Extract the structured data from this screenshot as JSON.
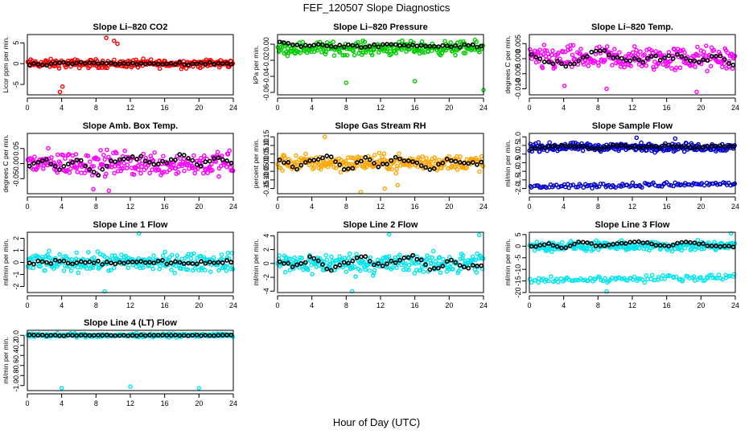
{
  "title": "FEF_120507  Slope Diagnostics",
  "xlabel": "Hour of Day (UTC)",
  "chart_data": [
    {
      "type": "scatter",
      "title": "Slope Li–820 CO2",
      "ylabel": "Licor ppm per min.",
      "color": "#ff0000",
      "xlim": [
        0,
        24
      ],
      "xticks": [
        "0",
        "4",
        "8",
        "12",
        "16",
        "20",
        "24"
      ],
      "ylim": [
        -7.5,
        7
      ],
      "yticks": [
        "-5",
        "0",
        "5"
      ],
      "series": [
        {
          "band_center": 0,
          "band_halfwidth": 1.5,
          "trend": [
            0,
            0,
            0,
            0,
            0,
            0,
            0
          ]
        },
        {
          "x": [
            3.8,
            4.1,
            8.8,
            9.2,
            10.1,
            10.5
          ],
          "y": [
            -6.8,
            -5.5,
            7.6,
            6.2,
            5.5,
            4.8
          ]
        },
        {
          "x": [
            0,
            2,
            4,
            6,
            8,
            10,
            12,
            14,
            16,
            18,
            20,
            22,
            24
          ],
          "y": [
            0,
            -0.2,
            0.3,
            0,
            0.2,
            0,
            0,
            -0.1,
            0,
            0,
            0,
            0.1,
            0
          ]
        }
      ]
    },
    {
      "type": "scatter",
      "title": "Slope Li–820 Pressure",
      "ylabel": "kPa per min.",
      "color": "#00cc00",
      "xlim": [
        0,
        24
      ],
      "xticks": [
        "0",
        "4",
        "8",
        "12",
        "16",
        "20",
        "24"
      ],
      "ylim": [
        -0.063,
        0.012
      ],
      "yticks": [
        "-0.06",
        "-0.04",
        "-0.02",
        "0.00"
      ],
      "series": [
        {
          "band_center": -0.005,
          "band_halfwidth": 0.012,
          "trend": [
            -0.002,
            -0.002,
            -0.002,
            -0.002,
            -0.002,
            -0.002,
            -0.002
          ]
        },
        {
          "x": [
            8,
            16,
            24
          ],
          "y": [
            -0.048,
            -0.046,
            -0.057
          ]
        },
        {
          "x": [
            0,
            2,
            4,
            6,
            8,
            10,
            12,
            14,
            16,
            18,
            20,
            22,
            24
          ],
          "y": [
            0.002,
            0,
            -0.002,
            -0.001,
            -0.002,
            -0.003,
            -0.002,
            -0.001,
            -0.002,
            -0.002,
            -0.003,
            -0.002,
            -0.002
          ]
        }
      ]
    },
    {
      "type": "scatter",
      "title": "Slope Li–820 Temp.",
      "ylabel": "degrees C per min.",
      "color": "#ff00ff",
      "xlim": [
        0,
        24
      ],
      "xticks": [
        "0",
        "4",
        "8",
        "12",
        "16",
        "20",
        "24"
      ],
      "ylim": [
        -0.012,
        0.008
      ],
      "yticks": [
        "-0.010",
        "-0.005",
        "0.000",
        "0.005"
      ],
      "series": [
        {
          "band_center": 0,
          "band_halfwidth": 0.006,
          "trend": [
            0,
            0,
            0,
            0,
            0,
            0,
            0
          ]
        },
        {
          "x": [
            4.1,
            9,
            19.5
          ],
          "y": [
            -0.009,
            -0.01,
            -0.011
          ]
        },
        {
          "x": [
            0,
            2,
            4,
            6,
            8,
            10,
            12,
            14,
            16,
            18,
            20,
            22,
            24
          ],
          "y": [
            0.001,
            -0.001,
            -0.002,
            0,
            0.002,
            0.001,
            -0.001,
            0,
            0.001,
            0,
            -0.001,
            0.001,
            -0.002
          ]
        }
      ]
    },
    {
      "type": "scatter",
      "title": "Slope Amb. Box Temp.",
      "ylabel": "degrees C per min.",
      "color": "#ff00ff",
      "xlim": [
        0,
        24
      ],
      "xticks": [
        "0",
        "4",
        "8",
        "12",
        "16",
        "20",
        "24"
      ],
      "ylim": [
        -0.1,
        0.1
      ],
      "yticks": [
        "-0.05",
        "0.00",
        "0.05"
      ],
      "series": [
        {
          "band_center": 0,
          "band_halfwidth": 0.06,
          "trend": [
            0,
            0,
            0,
            0,
            0,
            0,
            0
          ]
        },
        {
          "x": [
            7.7,
            9.5
          ],
          "y": [
            -0.085,
            -0.09
          ]
        },
        {
          "x": [
            0,
            2,
            4,
            6,
            8,
            10,
            12,
            14,
            16,
            18,
            20,
            22,
            24
          ],
          "y": [
            -0.01,
            0.01,
            -0.02,
            0.02,
            -0.04,
            0.01,
            0.02,
            0.01,
            0,
            0.03,
            -0.01,
            0.02,
            0
          ]
        }
      ]
    },
    {
      "type": "scatter",
      "title": "Slope Gas Stream RH",
      "ylabel": "percent per min.",
      "color": "#ffa500",
      "xlim": [
        0,
        24
      ],
      "xticks": [
        "0",
        "4",
        "8",
        "12",
        "16",
        "20",
        "24"
      ],
      "ylim": [
        -0.18,
        0.17
      ],
      "yticks": [
        "-0.15",
        "-0.10",
        "-0.05",
        "0.00",
        "0.05",
        "0.10",
        "0.15"
      ],
      "series": [
        {
          "band_center": 0,
          "band_halfwidth": 0.07,
          "trend": [
            0,
            0,
            0,
            0,
            0,
            0,
            0
          ]
        },
        {
          "x": [
            5.5,
            9.7,
            12.5,
            14
          ],
          "y": [
            0.15,
            -0.17,
            -0.15,
            -0.13
          ]
        },
        {
          "x": [
            0,
            2,
            4,
            6,
            8,
            10,
            12,
            14,
            16,
            18,
            20,
            22,
            24
          ],
          "y": [
            0.02,
            -0.03,
            0.01,
            0.04,
            -0.05,
            0.02,
            -0.02,
            0.03,
            0,
            -0.04,
            0.02,
            -0.01,
            0.01
          ]
        }
      ]
    },
    {
      "type": "scatter",
      "title": "Slope Sample Flow",
      "ylabel": "ml/min per min.",
      "color": "#0000cc",
      "xlim": [
        0,
        24
      ],
      "xticks": [
        "0",
        "4",
        "8",
        "12",
        "16",
        "20",
        "24"
      ],
      "ylim": [
        -2.3,
        1.2
      ],
      "yticks": [
        "-2.0",
        "-1.5",
        "-1.0",
        "-0.5",
        "0.0",
        "0.5",
        "1.0"
      ],
      "series": [
        {
          "band_center": 0.4,
          "band_halfwidth": 0.35,
          "low_band_center": -1.8,
          "low_band_halfwidth": 0.2,
          "trend": [
            0.4,
            0.4,
            0.4,
            0.4,
            0.4,
            0.4,
            0.4
          ]
        },
        {
          "x": [
            12.5,
            17
          ],
          "y": [
            0.95,
            0.9
          ]
        },
        {
          "x": [
            0,
            2,
            4,
            6,
            8,
            10,
            12,
            14,
            16,
            18,
            20,
            22,
            24
          ],
          "y": [
            0.3,
            0.4,
            0.5,
            0.4,
            0.3,
            0.5,
            0.4,
            0.4,
            0.5,
            0.4,
            0.4,
            0.5,
            0.4
          ]
        }
      ]
    },
    {
      "type": "scatter",
      "title": "Slope Line 1 Flow",
      "ylabel": "ml/min per min.",
      "color": "#00e5ee",
      "xlim": [
        0,
        24
      ],
      "xticks": [
        "0",
        "4",
        "8",
        "12",
        "16",
        "20",
        "24"
      ],
      "ylim": [
        -2.5,
        2.5
      ],
      "yticks": [
        "-2",
        "-1",
        "0",
        "1",
        "2"
      ],
      "series": [
        {
          "band_center": 0,
          "band_halfwidth": 1.1,
          "trend": [
            0,
            0,
            0,
            0,
            0,
            0,
            0
          ]
        },
        {
          "x": [
            9,
            13
          ],
          "y": [
            -2.4,
            2.4
          ]
        },
        {
          "x": [
            0,
            2,
            4,
            6,
            8,
            10,
            12,
            14,
            16,
            18,
            20,
            22,
            24
          ],
          "y": [
            0,
            0,
            0,
            0,
            0,
            0,
            0,
            0,
            0,
            0,
            0,
            0,
            0
          ]
        }
      ]
    },
    {
      "type": "scatter",
      "title": "Slope Line 2 Flow",
      "ylabel": "ml/min per min.",
      "color": "#00e5ee",
      "xlim": [
        0,
        24
      ],
      "xticks": [
        "0",
        "4",
        "8",
        "12",
        "16",
        "20",
        "24"
      ],
      "ylim": [
        -4.2,
        4.5
      ],
      "yticks": [
        "-4",
        "-2",
        "0",
        "2",
        "4"
      ],
      "series": [
        {
          "band_center": 0,
          "band_halfwidth": 2.2,
          "trend": [
            0,
            0,
            0,
            0,
            0,
            0,
            0
          ]
        },
        {
          "x": [
            8.7,
            13,
            23.5
          ],
          "y": [
            -4,
            4.2,
            4.1
          ]
        },
        {
          "x": [
            0,
            2,
            4,
            6,
            8,
            10,
            12,
            14,
            16,
            18,
            20,
            22,
            24
          ],
          "y": [
            0.5,
            -0.5,
            1,
            -1,
            0,
            1,
            -0.5,
            0.5,
            1,
            -1,
            0.5,
            -0.5,
            0
          ]
        }
      ]
    },
    {
      "type": "scatter",
      "title": "Slope Line 3 Flow",
      "ylabel": "ml/min per min.",
      "color": "#00e5ee",
      "xlim": [
        0,
        24
      ],
      "xticks": [
        "0",
        "4",
        "8",
        "12",
        "16",
        "20",
        "24"
      ],
      "ylim": [
        -20,
        6
      ],
      "yticks": [
        "-20",
        "-15",
        "-10",
        "-5",
        "0",
        "5"
      ],
      "series": [
        {
          "band_center": 0,
          "band_halfwidth": 3,
          "low_band_center": -14,
          "low_band_halfwidth": 2,
          "trend": [
            0,
            0,
            0,
            0,
            0,
            0,
            0
          ]
        },
        {
          "x": [
            23.5,
            9
          ],
          "y": [
            5.5,
            -19.5
          ]
        },
        {
          "x": [
            0,
            2,
            4,
            6,
            8,
            10,
            12,
            14,
            16,
            18,
            20,
            22,
            24
          ],
          "y": [
            0,
            1,
            -1,
            2,
            0,
            1,
            2,
            1,
            0,
            2,
            1,
            0,
            0
          ]
        }
      ]
    },
    {
      "type": "scatter",
      "title": "Slope Line 4 (LT) Flow",
      "ylabel": "ml/min per min.",
      "color": "#00e5ee",
      "xlim": [
        0,
        24
      ],
      "xticks": [
        "0",
        "4",
        "8",
        "12",
        "16",
        "20",
        "24"
      ],
      "ylim": [
        -1.1,
        0.1
      ],
      "yticks": [
        "-1.0",
        "-0.8",
        "-0.6",
        "-0.4",
        "-0.2",
        "0.0"
      ],
      "series": [
        {
          "band_center": 0,
          "band_halfwidth": 0.05,
          "trend": [
            0,
            0,
            0,
            0,
            0,
            0,
            0
          ]
        },
        {
          "x": [
            4,
            12,
            20
          ],
          "y": [
            -1.05,
            -1.02,
            -1.05
          ]
        },
        {
          "x": [
            0,
            2,
            4,
            6,
            8,
            10,
            12,
            14,
            16,
            18,
            20,
            22,
            24
          ],
          "y": [
            0,
            0,
            0,
            0,
            0,
            0,
            0,
            0,
            0,
            0,
            0,
            0,
            0
          ]
        }
      ]
    }
  ]
}
